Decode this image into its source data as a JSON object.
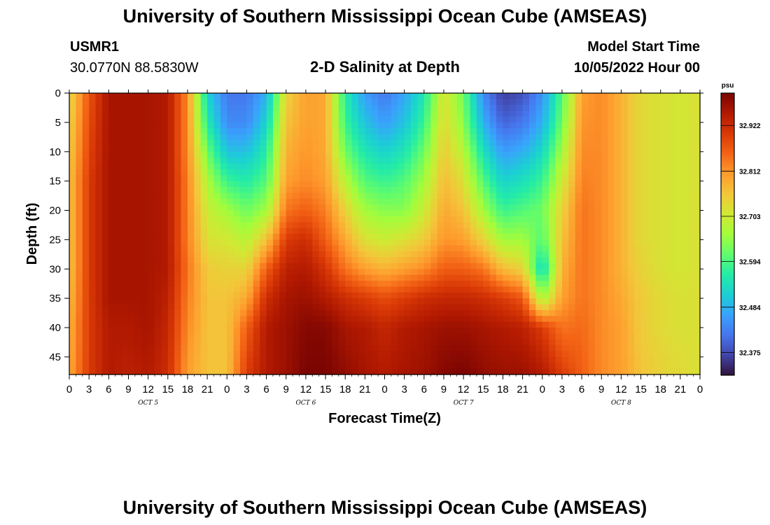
{
  "header": {
    "title": "University of Southern Mississippi Ocean Cube (AMSEAS)",
    "station": "USMR1",
    "coords": "30.0770N  88.5830W",
    "subtitle": "2-D Salinity at Depth",
    "start_label": "Model Start Time",
    "start_value": "10/05/2022 Hour 00"
  },
  "footer": {
    "title": "University of Southern Mississippi Ocean Cube (AMSEAS)"
  },
  "chart_data": {
    "type": "heatmap",
    "title": "2-D Salinity at Depth",
    "xlabel": "Forecast Time(Z)",
    "ylabel": "Depth (ft)",
    "x_tick_labels": [
      "0",
      "3",
      "6",
      "9",
      "12",
      "15",
      "18",
      "21",
      "0",
      "3",
      "6",
      "9",
      "12",
      "15",
      "18",
      "21",
      "0",
      "3",
      "6",
      "9",
      "12",
      "15",
      "18",
      "21",
      "0",
      "3",
      "6",
      "9",
      "12",
      "15",
      "18",
      "21",
      "0"
    ],
    "x_range_hours": [
      0,
      96
    ],
    "day_labels": [
      {
        "text": "OCT 5",
        "hour": 12
      },
      {
        "text": "OCT 6",
        "hour": 36
      },
      {
        "text": "OCT 7",
        "hour": 60
      },
      {
        "text": "OCT 8",
        "hour": 84
      }
    ],
    "y_ticks": [
      0,
      5,
      10,
      15,
      20,
      25,
      30,
      35,
      40,
      45
    ],
    "ylim": [
      0,
      48
    ],
    "colorbar": {
      "unit": "psu",
      "min": 32.32,
      "max": 33.0,
      "ticks": [
        "32.922",
        "32.812",
        "32.703",
        "32.594",
        "32.484",
        "32.375"
      ],
      "colormap": [
        "#30123b",
        "#4145ab",
        "#4675ed",
        "#39a2fc",
        "#1bcfd4",
        "#24eca6",
        "#61fc6c",
        "#a4fc3b",
        "#d1e834",
        "#f3c63a",
        "#fe9b2d",
        "#f36315",
        "#d93806",
        "#b11901",
        "#7a0402"
      ]
    },
    "columns": [
      {
        "hour": 0,
        "values": [
          32.73,
          32.74,
          32.75,
          32.76,
          32.76,
          32.76,
          32.76,
          32.77,
          32.78,
          32.79
        ]
      },
      {
        "hour": 3,
        "values": [
          32.87,
          32.88,
          32.89,
          32.9,
          32.9,
          32.9,
          32.9,
          32.9,
          32.9,
          32.9
        ]
      },
      {
        "hour": 6,
        "values": [
          32.96,
          32.96,
          32.96,
          32.96,
          32.96,
          32.96,
          32.96,
          32.96,
          32.95,
          32.95
        ]
      },
      {
        "hour": 9,
        "values": [
          32.96,
          32.96,
          32.96,
          32.96,
          32.96,
          32.96,
          32.96,
          32.96,
          32.95,
          32.94
        ]
      },
      {
        "hour": 12,
        "values": [
          32.96,
          32.96,
          32.96,
          32.96,
          32.96,
          32.96,
          32.96,
          32.96,
          32.96,
          32.95
        ]
      },
      {
        "hour": 15,
        "values": [
          32.95,
          32.95,
          32.95,
          32.95,
          32.95,
          32.95,
          32.95,
          32.94,
          32.93,
          32.92
        ]
      },
      {
        "hour": 18,
        "values": [
          32.82,
          32.82,
          32.82,
          32.83,
          32.83,
          32.83,
          32.84,
          32.83,
          32.82,
          32.8
        ]
      },
      {
        "hour": 21,
        "values": [
          32.52,
          32.56,
          32.62,
          32.67,
          32.7,
          32.72,
          32.75,
          32.76,
          32.76,
          32.76
        ]
      },
      {
        "hour": 24,
        "values": [
          32.42,
          32.44,
          32.5,
          32.58,
          32.66,
          32.71,
          32.74,
          32.76,
          32.76,
          32.76
        ]
      },
      {
        "hour": 27,
        "values": [
          32.42,
          32.44,
          32.5,
          32.56,
          32.62,
          32.68,
          32.74,
          32.79,
          32.86,
          32.9
        ]
      },
      {
        "hour": 30,
        "values": [
          32.48,
          32.52,
          32.56,
          32.6,
          32.66,
          32.76,
          32.86,
          32.92,
          32.95,
          32.95
        ]
      },
      {
        "hour": 33,
        "values": [
          32.74,
          32.76,
          32.78,
          32.8,
          32.84,
          32.9,
          32.94,
          32.96,
          32.97,
          32.97
        ]
      },
      {
        "hour": 36,
        "values": [
          32.8,
          32.8,
          32.81,
          32.82,
          32.86,
          32.92,
          32.95,
          32.97,
          32.99,
          33.0
        ]
      },
      {
        "hour": 39,
        "values": [
          32.79,
          32.79,
          32.79,
          32.8,
          32.83,
          32.86,
          32.91,
          32.95,
          32.99,
          33.0
        ]
      },
      {
        "hour": 42,
        "values": [
          32.56,
          32.58,
          32.62,
          32.68,
          32.74,
          32.79,
          32.84,
          32.92,
          32.96,
          32.98
        ]
      },
      {
        "hour": 45,
        "values": [
          32.46,
          32.5,
          32.55,
          32.6,
          32.66,
          32.72,
          32.8,
          32.9,
          32.95,
          32.96
        ]
      },
      {
        "hour": 48,
        "values": [
          32.42,
          32.46,
          32.52,
          32.58,
          32.64,
          32.7,
          32.78,
          32.88,
          32.93,
          32.95
        ]
      },
      {
        "hour": 51,
        "values": [
          32.47,
          32.5,
          32.55,
          32.6,
          32.64,
          32.72,
          32.8,
          32.9,
          32.95,
          32.96
        ]
      },
      {
        "hour": 54,
        "values": [
          32.55,
          32.58,
          32.62,
          32.66,
          32.7,
          32.75,
          32.82,
          32.92,
          32.96,
          32.97
        ]
      },
      {
        "hour": 57,
        "values": [
          32.72,
          32.73,
          32.75,
          32.77,
          32.79,
          32.81,
          32.86,
          32.93,
          32.97,
          32.99
        ]
      },
      {
        "hour": 60,
        "values": [
          32.62,
          32.64,
          32.68,
          32.72,
          32.76,
          32.8,
          32.86,
          32.93,
          32.97,
          33.0
        ]
      },
      {
        "hour": 63,
        "values": [
          32.44,
          32.48,
          32.54,
          32.6,
          32.66,
          32.74,
          32.84,
          32.92,
          32.96,
          32.98
        ]
      },
      {
        "hour": 66,
        "values": [
          32.36,
          32.4,
          32.46,
          32.52,
          32.58,
          32.66,
          32.77,
          32.9,
          32.95,
          32.97
        ]
      },
      {
        "hour": 69,
        "values": [
          32.38,
          32.42,
          32.48,
          32.54,
          32.6,
          32.66,
          32.74,
          32.87,
          32.94,
          32.97
        ]
      },
      {
        "hour": 72,
        "values": [
          32.45,
          32.48,
          32.53,
          32.58,
          32.62,
          32.6,
          32.52,
          32.66,
          32.9,
          32.95
        ]
      },
      {
        "hour": 75,
        "values": [
          32.6,
          32.62,
          32.66,
          32.7,
          32.74,
          32.76,
          32.78,
          32.8,
          32.84,
          32.9
        ]
      },
      {
        "hour": 78,
        "values": [
          32.8,
          32.81,
          32.82,
          32.83,
          32.84,
          32.84,
          32.84,
          32.84,
          32.85,
          32.86
        ]
      },
      {
        "hour": 81,
        "values": [
          32.82,
          32.82,
          32.82,
          32.82,
          32.82,
          32.82,
          32.82,
          32.82,
          32.82,
          32.82
        ]
      },
      {
        "hour": 84,
        "values": [
          32.78,
          32.78,
          32.78,
          32.78,
          32.78,
          32.78,
          32.78,
          32.79,
          32.8,
          32.8
        ]
      },
      {
        "hour": 87,
        "values": [
          32.73,
          32.73,
          32.73,
          32.73,
          32.73,
          32.73,
          32.74,
          32.75,
          32.75,
          32.76
        ]
      },
      {
        "hour": 90,
        "values": [
          32.72,
          32.72,
          32.72,
          32.72,
          32.72,
          32.72,
          32.72,
          32.73,
          32.73,
          32.74
        ]
      },
      {
        "hour": 93,
        "values": [
          32.71,
          32.71,
          32.71,
          32.71,
          32.71,
          32.71,
          32.71,
          32.72,
          32.72,
          32.73
        ]
      },
      {
        "hour": 96,
        "values": [
          32.72,
          32.72,
          32.72,
          32.72,
          32.72,
          32.72,
          32.72,
          32.72,
          32.72,
          32.72
        ]
      }
    ],
    "column_depths": [
      0,
      5,
      10,
      15,
      20,
      25,
      30,
      35,
      40,
      48
    ]
  }
}
